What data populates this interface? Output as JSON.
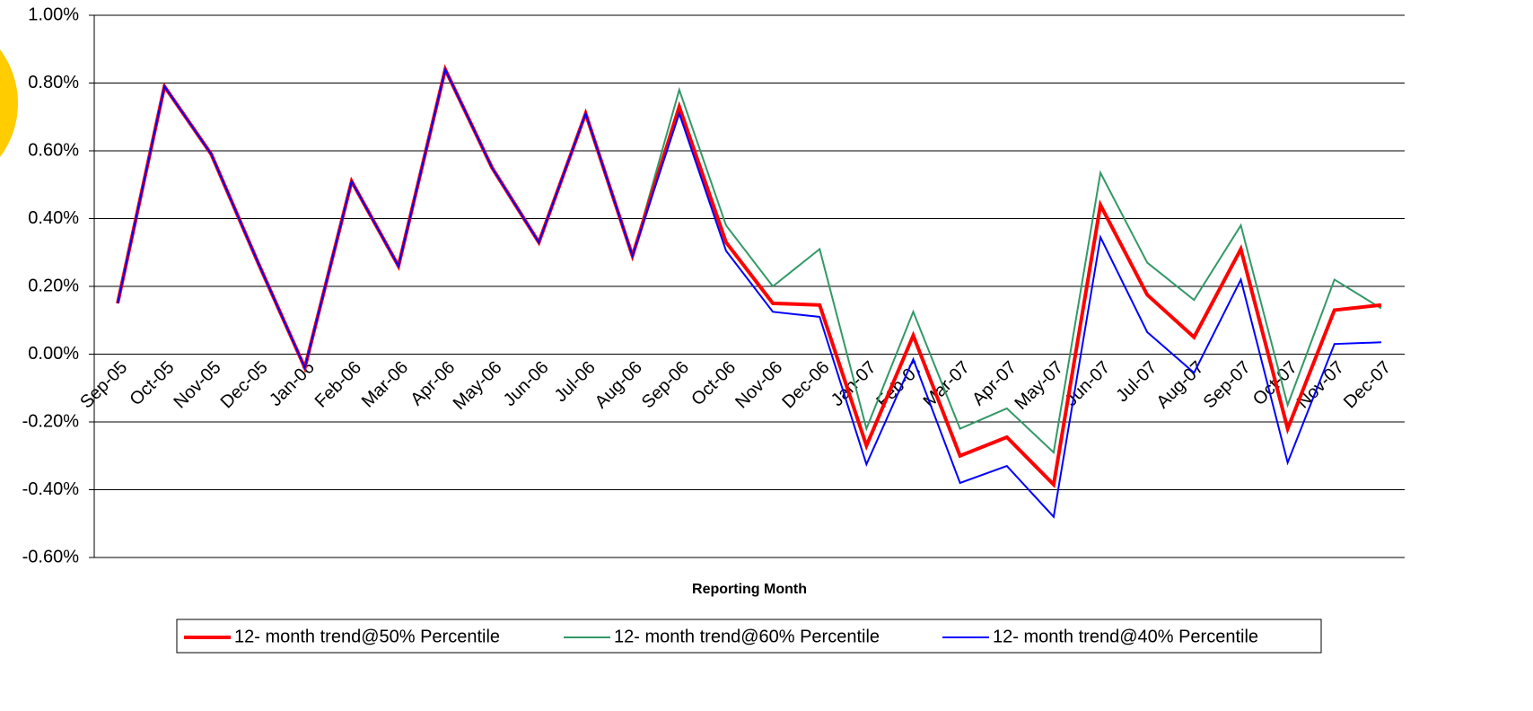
{
  "chart_data": {
    "type": "line",
    "x_label": "Reporting Month",
    "categories": [
      "Sep-05",
      "Oct-05",
      "Nov-05",
      "Dec-05",
      "Jan-06",
      "Feb-06",
      "Mar-06",
      "Apr-06",
      "May-06",
      "Jun-06",
      "Jul-06",
      "Aug-06",
      "Sep-06",
      "Oct-06",
      "Nov-06",
      "Dec-06",
      "Jan-07",
      "Feb-07",
      "Mar-07",
      "Apr-07",
      "May-07",
      "Jun-07",
      "Jul-07",
      "Aug-07",
      "Sep-07",
      "Oct-07",
      "Nov-07",
      "Dec-07"
    ],
    "series": [
      {
        "name": "12- month trend@50% Percentile",
        "color": "#ff0000",
        "values": [
          0.15,
          0.79,
          0.59,
          0.27,
          -0.04,
          0.51,
          0.26,
          0.84,
          0.55,
          0.33,
          0.71,
          0.29,
          0.73,
          0.33,
          0.15,
          0.145,
          -0.27,
          0.055,
          -0.3,
          -0.245,
          -0.385,
          0.44,
          0.175,
          0.05,
          0.31,
          -0.22,
          0.13,
          0.145
        ]
      },
      {
        "name": "12- month trend@60% Percentile",
        "color": "#339966",
        "values": [
          0.15,
          0.79,
          0.59,
          0.27,
          -0.04,
          0.51,
          0.26,
          0.84,
          0.55,
          0.33,
          0.71,
          0.29,
          0.78,
          0.38,
          0.2,
          0.31,
          -0.22,
          0.125,
          -0.22,
          -0.16,
          -0.29,
          0.535,
          0.27,
          0.16,
          0.38,
          -0.15,
          0.22,
          0.135
        ]
      },
      {
        "name": "12- month trend@40% Percentile",
        "color": "#0000ff",
        "values": [
          0.15,
          0.79,
          0.59,
          0.27,
          -0.04,
          0.51,
          0.26,
          0.84,
          0.55,
          0.33,
          0.71,
          0.29,
          0.71,
          0.305,
          0.125,
          0.11,
          -0.325,
          -0.015,
          -0.38,
          -0.33,
          -0.48,
          0.345,
          0.065,
          -0.055,
          0.22,
          -0.32,
          0.03,
          0.035
        ]
      }
    ],
    "ylim": [
      -0.6,
      1.0
    ],
    "yticks": [
      {
        "value": -0.6,
        "label": "-0.60%"
      },
      {
        "value": -0.4,
        "label": "-0.40%"
      },
      {
        "value": -0.2,
        "label": "-0.20%"
      },
      {
        "value": 0,
        "label": "0.00%"
      },
      {
        "value": 0.2,
        "label": "0.20%"
      },
      {
        "value": 0.4,
        "label": "0.40%"
      },
      {
        "value": 0.6,
        "label": "0.60%"
      },
      {
        "value": 0.8,
        "label": "0.80%"
      },
      {
        "value": 1.0,
        "label": "1.00%"
      }
    ],
    "grid": true,
    "legend": "bottom"
  }
}
